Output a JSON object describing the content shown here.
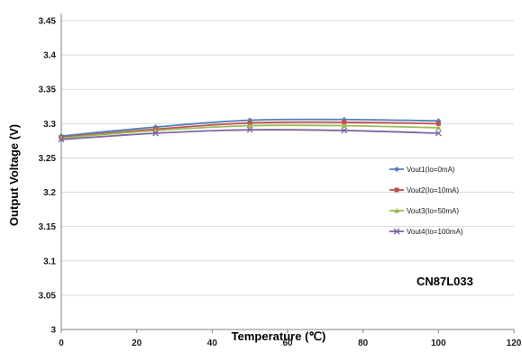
{
  "chart_data": {
    "type": "line",
    "title": "",
    "xlabel": "Temperature (℃)",
    "ylabel": "Output Voltage (V)",
    "xlim": [
      0,
      120
    ],
    "ylim": [
      3,
      3.45
    ],
    "xticks": [
      "0",
      "20",
      "40",
      "60",
      "80",
      "100",
      "120"
    ],
    "yticks": [
      "3",
      "3.05",
      "3.1",
      "3.15",
      "3.2",
      "3.25",
      "3.3",
      "3.35",
      "3.4",
      "3.45"
    ],
    "grid": true,
    "legend_position": "right",
    "annotation": "CN87L033",
    "x": [
      0,
      25,
      50,
      75,
      100
    ],
    "series": [
      {
        "name": "Vout1(Io=0mA)",
        "values": [
          3.282,
          3.295,
          3.305,
          3.306,
          3.304
        ],
        "color": "#4f81bd",
        "marker": "diamond"
      },
      {
        "name": "Vout2(Io=10mA)",
        "values": [
          3.28,
          3.292,
          3.301,
          3.302,
          3.3
        ],
        "color": "#c0504d",
        "marker": "square"
      },
      {
        "name": "Vout3(Io=50mA)",
        "values": [
          3.279,
          3.29,
          3.297,
          3.297,
          3.294
        ],
        "color": "#9bbb59",
        "marker": "triangle"
      },
      {
        "name": "Vout4(Io=100mA)",
        "values": [
          3.277,
          3.286,
          3.291,
          3.29,
          3.286
        ],
        "color": "#8064a2",
        "marker": "x"
      }
    ]
  }
}
